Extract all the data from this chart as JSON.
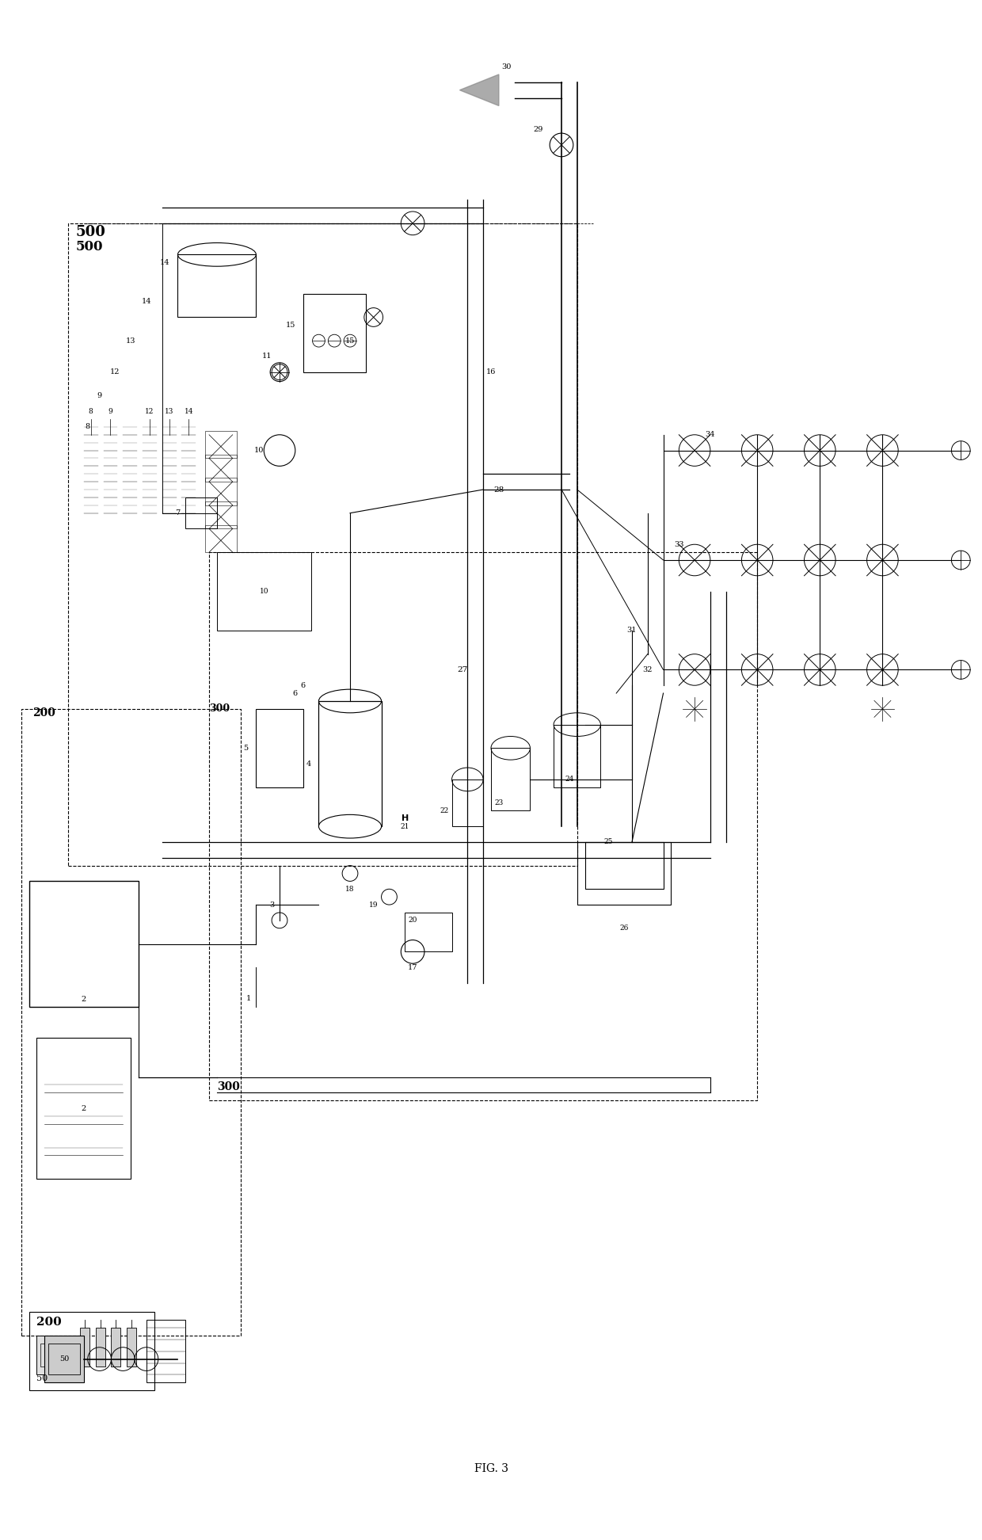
{
  "title": "FIG. 3",
  "bg_color": "#ffffff",
  "line_color": "#000000",
  "fig_width": 12.4,
  "fig_height": 19.44,
  "dpi": 100,
  "labels": {
    "fig_label": "FIG. 3",
    "box_500": "500",
    "box_200": "200",
    "box_300": "300",
    "box_50": "50",
    "num_1": "1",
    "num_2": "2",
    "num_3": "3",
    "num_4": "4",
    "num_5": "5",
    "num_6": "6",
    "num_7": "7",
    "num_8": "8",
    "num_9": "9",
    "num_10": "10",
    "num_11": "11",
    "num_12": "12",
    "num_13": "13",
    "num_14": "14",
    "num_15": "15",
    "num_16": "16",
    "num_17": "17",
    "num_18": "18",
    "num_19": "19",
    "num_20": "20",
    "num_21": "21",
    "num_22": "22",
    "num_23": "23",
    "num_24": "24",
    "num_25": "25",
    "num_26": "26",
    "num_27": "27",
    "num_28": "28",
    "num_29": "29",
    "num_30": "30",
    "num_31": "31",
    "num_32": "32",
    "num_33": "33",
    "num_34": "34"
  }
}
